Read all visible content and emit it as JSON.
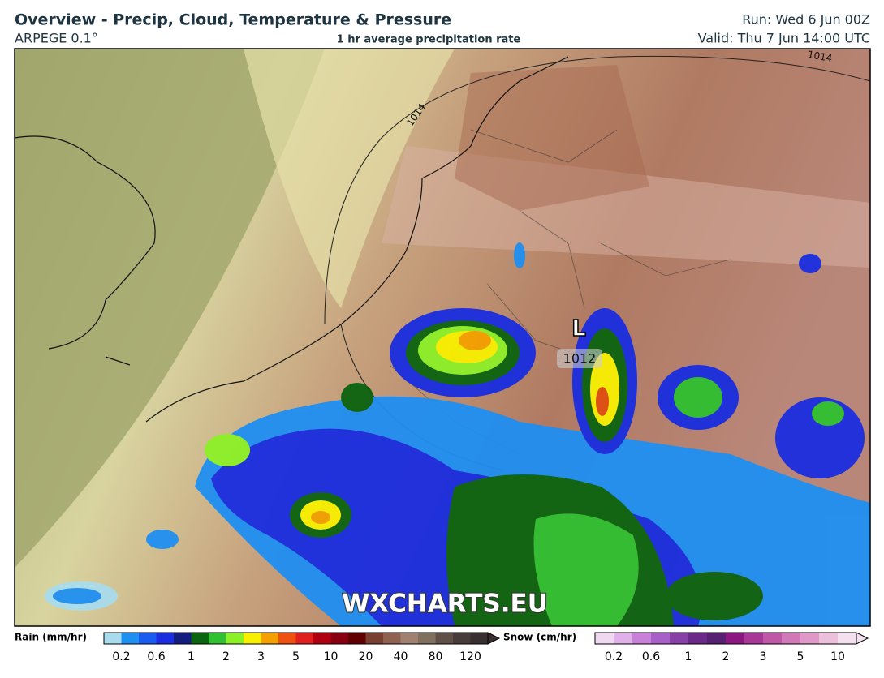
{
  "header": {
    "title": "Overview - Precip, Cloud, Temperature & Pressure",
    "model": "ARPEGE 0.1°",
    "subtitle": "1 hr average precipitation rate",
    "run": "Run: Wed 6 Jun 00Z",
    "valid": "Valid: Thu 7 Jun 14:00 UTC"
  },
  "map": {
    "low_marker": "L",
    "low_pressure": "1012",
    "isobar_labels": [
      "1014",
      "1014"
    ],
    "watermark": "WXCHARTS.EU"
  },
  "legend": {
    "rain": {
      "label": "Rain (mm/hr)",
      "ticks": [
        0.2,
        0.6,
        1,
        2,
        3,
        5,
        10,
        20,
        40,
        80,
        120
      ]
    },
    "snow": {
      "label": "Snow (cm/hr)",
      "ticks": [
        0.2,
        0.6,
        1,
        2,
        3,
        5,
        10
      ]
    }
  }
}
